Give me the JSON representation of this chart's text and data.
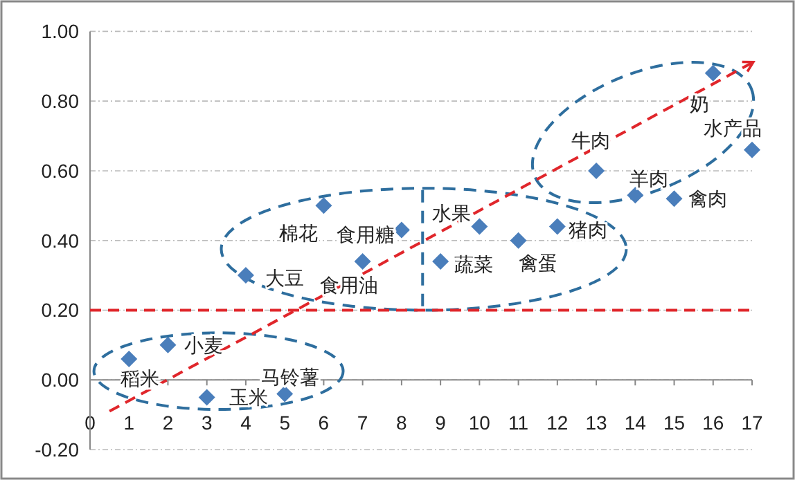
{
  "chart_data": {
    "type": "scatter",
    "marker": "diamond",
    "grid": "y",
    "xlim": [
      0,
      17
    ],
    "ylim": [
      -0.2,
      1.0
    ],
    "xticks": [
      0,
      1,
      2,
      3,
      4,
      5,
      6,
      7,
      8,
      9,
      10,
      11,
      12,
      13,
      14,
      15,
      16,
      17
    ],
    "yticks": [
      {
        "value": -0.2,
        "label": "-0.20"
      },
      {
        "value": 0,
        "label": "0.00"
      },
      {
        "value": 0.2,
        "label": "0.20"
      },
      {
        "value": 0.4,
        "label": "0.40"
      },
      {
        "value": 0.6,
        "label": "0.60"
      },
      {
        "value": 0.8,
        "label": "0.80"
      },
      {
        "value": 1.0,
        "label": "1.00"
      }
    ],
    "series": [
      {
        "type": "scatter",
        "color": "#4a7ebb",
        "x": [
          1,
          2,
          3,
          4,
          5,
          6,
          7,
          8,
          9,
          10,
          11,
          12,
          13,
          14,
          15,
          16,
          17
        ],
        "values": [
          0.06,
          0.1,
          -0.05,
          0.3,
          -0.04,
          0.5,
          0.34,
          0.43,
          0.34,
          0.44,
          0.4,
          0.44,
          0.6,
          0.53,
          0.52,
          0.88,
          0.66
        ]
      },
      {
        "type": "line",
        "color": "#e0262b",
        "line_style": "dashed",
        "marker": "none",
        "x": [
          0.5,
          17
        ],
        "values": [
          -0.09,
          0.91
        ]
      }
    ],
    "ref_lines": [
      {
        "axis": "y",
        "value": 0.2,
        "color": "#e0262b",
        "line_style": "dashed"
      }
    ],
    "annotations": [
      {
        "text": "稻米",
        "x": 1,
        "y": 0.06
      },
      {
        "text": "小麦",
        "x": 2,
        "y": 0.1
      },
      {
        "text": "玉米",
        "x": 3,
        "y": -0.05
      },
      {
        "text": "大豆",
        "x": 4,
        "y": 0.3
      },
      {
        "text": "马铃薯",
        "x": 5,
        "y": -0.04
      },
      {
        "text": "棉花",
        "x": 6,
        "y": 0.5
      },
      {
        "text": "食用油",
        "x": 7,
        "y": 0.34
      },
      {
        "text": "食用糖",
        "x": 8,
        "y": 0.43
      },
      {
        "text": "蔬菜",
        "x": 9,
        "y": 0.34
      },
      {
        "text": "水果",
        "x": 10,
        "y": 0.44
      },
      {
        "text": "禽蛋",
        "x": 11,
        "y": 0.4
      },
      {
        "text": "猪肉",
        "x": 12,
        "y": 0.44
      },
      {
        "text": "牛肉",
        "x": 13,
        "y": 0.6
      },
      {
        "text": "羊肉",
        "x": 14,
        "y": 0.53
      },
      {
        "text": "禽肉",
        "x": 15,
        "y": 0.52
      },
      {
        "text": "奶",
        "x": 16,
        "y": 0.88
      },
      {
        "text": "水产品",
        "x": 17,
        "y": 0.66
      }
    ]
  }
}
